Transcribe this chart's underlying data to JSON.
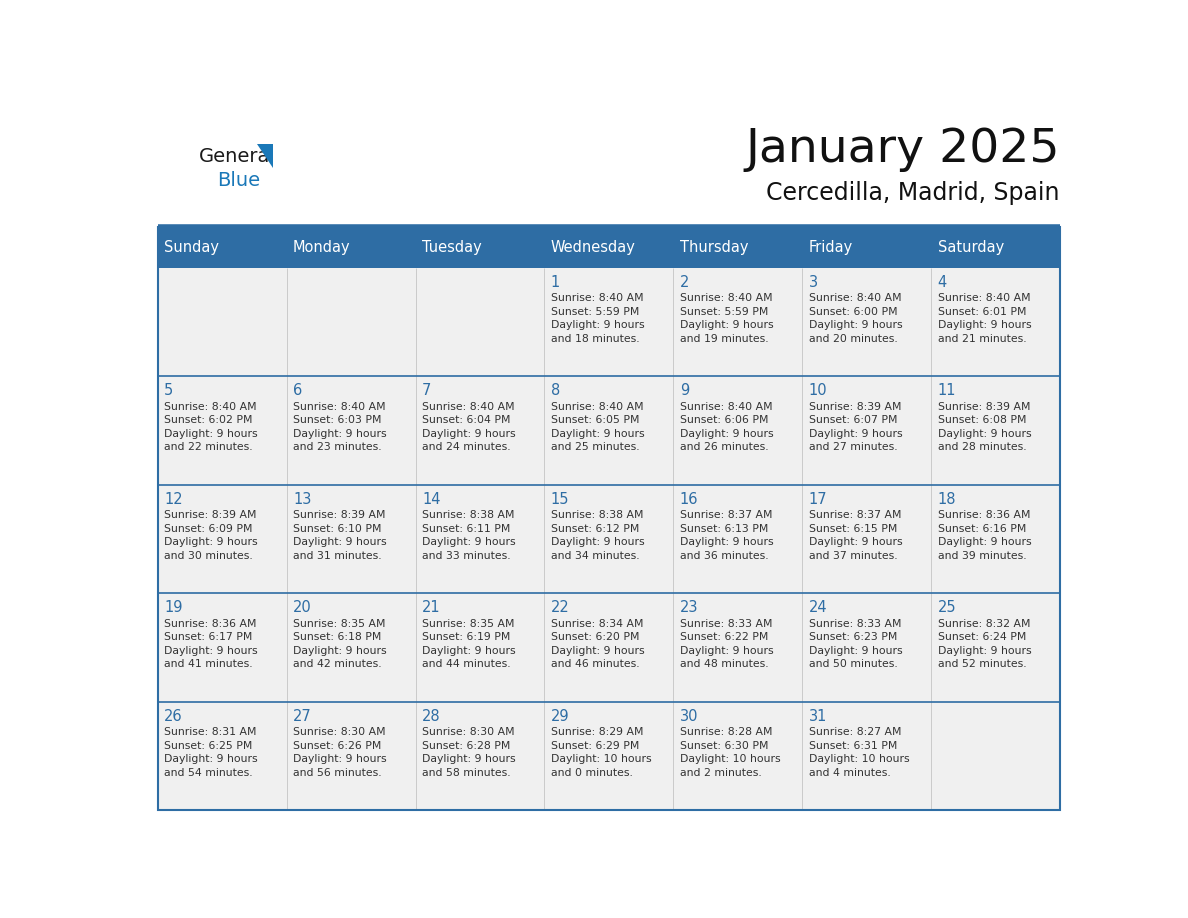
{
  "title": "January 2025",
  "subtitle": "Cercedilla, Madrid, Spain",
  "header_bg": "#2E6DA4",
  "header_text_color": "#FFFFFF",
  "cell_bg_light": "#F0F0F0",
  "day_number_color": "#2E6DA4",
  "cell_text_color": "#333333",
  "separator_color": "#2E6DA4",
  "row_separator_color": "#2E6DA4",
  "days_of_week": [
    "Sunday",
    "Monday",
    "Tuesday",
    "Wednesday",
    "Thursday",
    "Friday",
    "Saturday"
  ],
  "calendar": [
    [
      {
        "day": "",
        "text": ""
      },
      {
        "day": "",
        "text": ""
      },
      {
        "day": "",
        "text": ""
      },
      {
        "day": "1",
        "text": "Sunrise: 8:40 AM\nSunset: 5:59 PM\nDaylight: 9 hours\nand 18 minutes."
      },
      {
        "day": "2",
        "text": "Sunrise: 8:40 AM\nSunset: 5:59 PM\nDaylight: 9 hours\nand 19 minutes."
      },
      {
        "day": "3",
        "text": "Sunrise: 8:40 AM\nSunset: 6:00 PM\nDaylight: 9 hours\nand 20 minutes."
      },
      {
        "day": "4",
        "text": "Sunrise: 8:40 AM\nSunset: 6:01 PM\nDaylight: 9 hours\nand 21 minutes."
      }
    ],
    [
      {
        "day": "5",
        "text": "Sunrise: 8:40 AM\nSunset: 6:02 PM\nDaylight: 9 hours\nand 22 minutes."
      },
      {
        "day": "6",
        "text": "Sunrise: 8:40 AM\nSunset: 6:03 PM\nDaylight: 9 hours\nand 23 minutes."
      },
      {
        "day": "7",
        "text": "Sunrise: 8:40 AM\nSunset: 6:04 PM\nDaylight: 9 hours\nand 24 minutes."
      },
      {
        "day": "8",
        "text": "Sunrise: 8:40 AM\nSunset: 6:05 PM\nDaylight: 9 hours\nand 25 minutes."
      },
      {
        "day": "9",
        "text": "Sunrise: 8:40 AM\nSunset: 6:06 PM\nDaylight: 9 hours\nand 26 minutes."
      },
      {
        "day": "10",
        "text": "Sunrise: 8:39 AM\nSunset: 6:07 PM\nDaylight: 9 hours\nand 27 minutes."
      },
      {
        "day": "11",
        "text": "Sunrise: 8:39 AM\nSunset: 6:08 PM\nDaylight: 9 hours\nand 28 minutes."
      }
    ],
    [
      {
        "day": "12",
        "text": "Sunrise: 8:39 AM\nSunset: 6:09 PM\nDaylight: 9 hours\nand 30 minutes."
      },
      {
        "day": "13",
        "text": "Sunrise: 8:39 AM\nSunset: 6:10 PM\nDaylight: 9 hours\nand 31 minutes."
      },
      {
        "day": "14",
        "text": "Sunrise: 8:38 AM\nSunset: 6:11 PM\nDaylight: 9 hours\nand 33 minutes."
      },
      {
        "day": "15",
        "text": "Sunrise: 8:38 AM\nSunset: 6:12 PM\nDaylight: 9 hours\nand 34 minutes."
      },
      {
        "day": "16",
        "text": "Sunrise: 8:37 AM\nSunset: 6:13 PM\nDaylight: 9 hours\nand 36 minutes."
      },
      {
        "day": "17",
        "text": "Sunrise: 8:37 AM\nSunset: 6:15 PM\nDaylight: 9 hours\nand 37 minutes."
      },
      {
        "day": "18",
        "text": "Sunrise: 8:36 AM\nSunset: 6:16 PM\nDaylight: 9 hours\nand 39 minutes."
      }
    ],
    [
      {
        "day": "19",
        "text": "Sunrise: 8:36 AM\nSunset: 6:17 PM\nDaylight: 9 hours\nand 41 minutes."
      },
      {
        "day": "20",
        "text": "Sunrise: 8:35 AM\nSunset: 6:18 PM\nDaylight: 9 hours\nand 42 minutes."
      },
      {
        "day": "21",
        "text": "Sunrise: 8:35 AM\nSunset: 6:19 PM\nDaylight: 9 hours\nand 44 minutes."
      },
      {
        "day": "22",
        "text": "Sunrise: 8:34 AM\nSunset: 6:20 PM\nDaylight: 9 hours\nand 46 minutes."
      },
      {
        "day": "23",
        "text": "Sunrise: 8:33 AM\nSunset: 6:22 PM\nDaylight: 9 hours\nand 48 minutes."
      },
      {
        "day": "24",
        "text": "Sunrise: 8:33 AM\nSunset: 6:23 PM\nDaylight: 9 hours\nand 50 minutes."
      },
      {
        "day": "25",
        "text": "Sunrise: 8:32 AM\nSunset: 6:24 PM\nDaylight: 9 hours\nand 52 minutes."
      }
    ],
    [
      {
        "day": "26",
        "text": "Sunrise: 8:31 AM\nSunset: 6:25 PM\nDaylight: 9 hours\nand 54 minutes."
      },
      {
        "day": "27",
        "text": "Sunrise: 8:30 AM\nSunset: 6:26 PM\nDaylight: 9 hours\nand 56 minutes."
      },
      {
        "day": "28",
        "text": "Sunrise: 8:30 AM\nSunset: 6:28 PM\nDaylight: 9 hours\nand 58 minutes."
      },
      {
        "day": "29",
        "text": "Sunrise: 8:29 AM\nSunset: 6:29 PM\nDaylight: 10 hours\nand 0 minutes."
      },
      {
        "day": "30",
        "text": "Sunrise: 8:28 AM\nSunset: 6:30 PM\nDaylight: 10 hours\nand 2 minutes."
      },
      {
        "day": "31",
        "text": "Sunrise: 8:27 AM\nSunset: 6:31 PM\nDaylight: 10 hours\nand 4 minutes."
      },
      {
        "day": "",
        "text": ""
      }
    ]
  ],
  "logo_general_color": "#1a1a1a",
  "logo_blue_color": "#1a78b8",
  "logo_triangle_color": "#1a78b8"
}
